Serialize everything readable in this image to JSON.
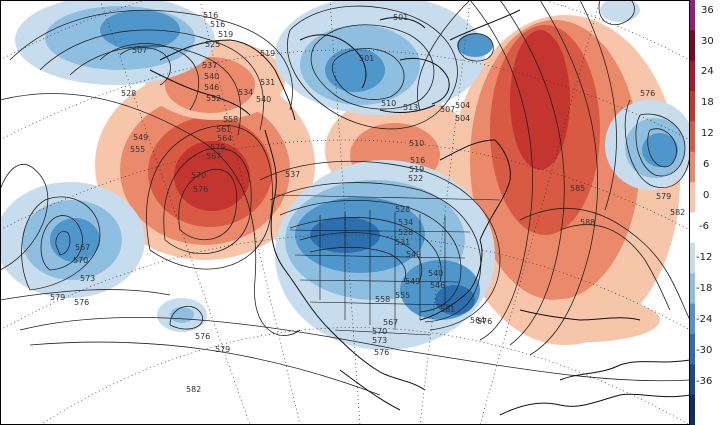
{
  "map": {
    "colorbar": {
      "ticks": [
        "36",
        "30",
        "24",
        "18",
        "12",
        "6",
        "0",
        "-6",
        "-12",
        "-18",
        "-24",
        "-30",
        "-36"
      ],
      "colors": [
        "#8e1f88",
        "#7a0a1d",
        "#a8172a",
        "#c4352f",
        "#d85a43",
        "#eb8a6b",
        "#f7c5a9",
        "#ffffff",
        "#c7dced",
        "#8fbfe0",
        "#4f97cb",
        "#2c6fae",
        "#1a4b88",
        "#0b2b63"
      ]
    },
    "contour_labels": [
      "516",
      "516",
      "507",
      "501",
      "501",
      "519",
      "519",
      "525",
      "528",
      "537",
      "534",
      "531",
      "540",
      "540",
      "546",
      "549",
      "552",
      "558",
      "561",
      "564",
      "567",
      "570",
      "576",
      "579",
      "555",
      "537",
      "528",
      "534",
      "549",
      "510",
      "513",
      "507",
      "504",
      "510",
      "504",
      "516",
      "522",
      "519",
      "528",
      "531",
      "540",
      "546",
      "549",
      "555",
      "558",
      "561",
      "564",
      "567",
      "570",
      "573",
      "576",
      "576",
      "567",
      "570",
      "573",
      "576",
      "579",
      "579",
      "576",
      "582",
      "585",
      "588",
      "582",
      "579",
      "576"
    ]
  }
}
